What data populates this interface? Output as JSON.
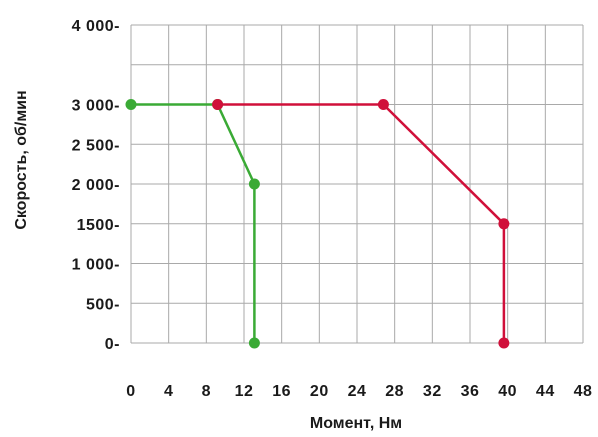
{
  "chart_data": {
    "type": "line",
    "xlabel": "Момент, Нм",
    "ylabel": "Скорость, об/мин",
    "xlim": [
      0,
      48
    ],
    "ylim": [
      0,
      4000
    ],
    "x_ticks": [
      0,
      4,
      8,
      12,
      16,
      20,
      24,
      28,
      32,
      36,
      40,
      44,
      48
    ],
    "x_tick_labels": [
      "0",
      "4",
      "8",
      "12",
      "16",
      "20",
      "24",
      "28",
      "32",
      "36",
      "40",
      "44",
      "48"
    ],
    "y_ticks": [
      0,
      500,
      1000,
      1500,
      2000,
      2500,
      3000,
      3500,
      4000
    ],
    "y_tick_labels": [
      "0-",
      "500-",
      "1 000-",
      "1500-",
      "2 000-",
      "2 500-",
      "3 000-",
      "",
      "4 000-"
    ],
    "grid": true,
    "series": [
      {
        "color": "#3aaa35",
        "points": [
          [
            0,
            3000
          ],
          [
            9.2,
            3000
          ],
          [
            13.1,
            2000
          ],
          [
            13.1,
            0
          ]
        ]
      },
      {
        "color": "#d0103a",
        "points": [
          [
            9.2,
            3000
          ],
          [
            26.8,
            3000
          ],
          [
            39.6,
            1500
          ],
          [
            39.6,
            0
          ]
        ]
      }
    ]
  }
}
